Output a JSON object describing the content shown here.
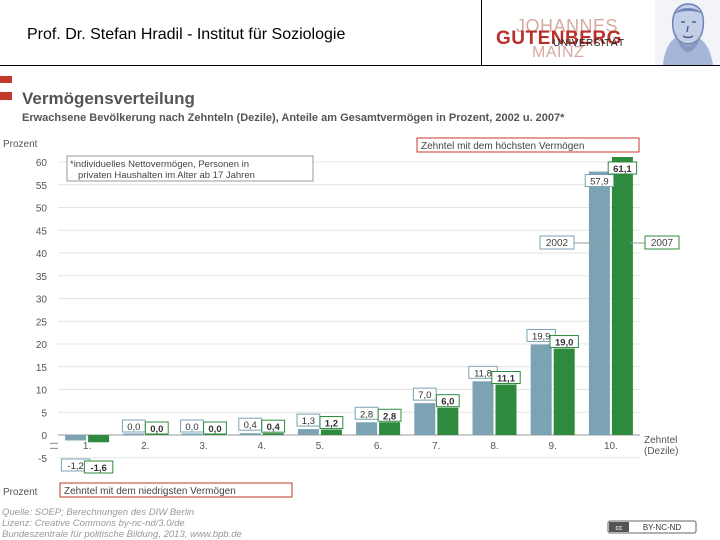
{
  "header": {
    "title": "Prof. Dr. Stefan Hradil - Institut für Soziologie",
    "logo": [
      "JOHANNES",
      "GUTENBERG",
      "UNIVERSITÄT",
      "MAINZ"
    ]
  },
  "chart_data": {
    "type": "bar",
    "title": "Vermögensverteilung",
    "subtitle": "Erwachsene Bevölkerung nach Zehnteln (Dezile), Anteile am Gesamtvermögen in Prozent, 2002 u. 2007*",
    "ylabel": "Prozent",
    "ylabel_bottom": "Prozent",
    "xlabel": "Zehntel (Dezile)",
    "ylim": [
      -5,
      60
    ],
    "yticks": [
      -5,
      0,
      5,
      10,
      15,
      20,
      25,
      30,
      35,
      40,
      45,
      50,
      55,
      60
    ],
    "categories": [
      "1.",
      "2.",
      "3.",
      "4.",
      "5.",
      "6.",
      "7.",
      "8.",
      "9.",
      "10."
    ],
    "series": [
      {
        "name": "2002",
        "color": "#7ba3b4",
        "values": [
          -1.2,
          0.0,
          0.0,
          0.4,
          1.3,
          2.8,
          7.0,
          11.8,
          19.9,
          57.9
        ],
        "labels": [
          "-1,2",
          "0,0",
          "0,0",
          "0,4",
          "1,3",
          "2,8",
          "7,0",
          "11,8",
          "19,9",
          "57,9"
        ]
      },
      {
        "name": "2007",
        "color": "#2e8b3e",
        "values": [
          -1.6,
          0.0,
          0.0,
          0.4,
          1.2,
          2.8,
          6.0,
          11.1,
          19.0,
          61.1
        ],
        "labels": [
          "-1,6",
          "0,0",
          "0,0",
          "0,4",
          "1,2",
          "2,8",
          "6,0",
          "11,1",
          "19,0",
          "61,1"
        ]
      }
    ],
    "annotations": {
      "footnote": [
        "*individuelles Nettovermögen, Personen in",
        "privaten Haushalten im Alter ab 17 Jahren"
      ],
      "top_decile": "Zehntel mit dem höchsten Vermögen",
      "bottom_decile": "Zehntel mit dem niedrigsten Vermögen",
      "legend_2002": "2002",
      "legend_2007": "2007"
    },
    "source": [
      "Quelle: SOEP; Berechnungen des DIW Berlin",
      "Lizenz: Creative Commons  by-nc-nd/3.0/de",
      "Bundeszentrale für politische Bildung, 2013, www.bpb.de"
    ],
    "license_badge": "BY-NC-ND",
    "grid": true
  },
  "colors": {
    "accent_red": "#c0392b",
    "bar_2002": "#7ba3b4",
    "bar_2007": "#2e8b3e",
    "title_gray": "#555555"
  }
}
